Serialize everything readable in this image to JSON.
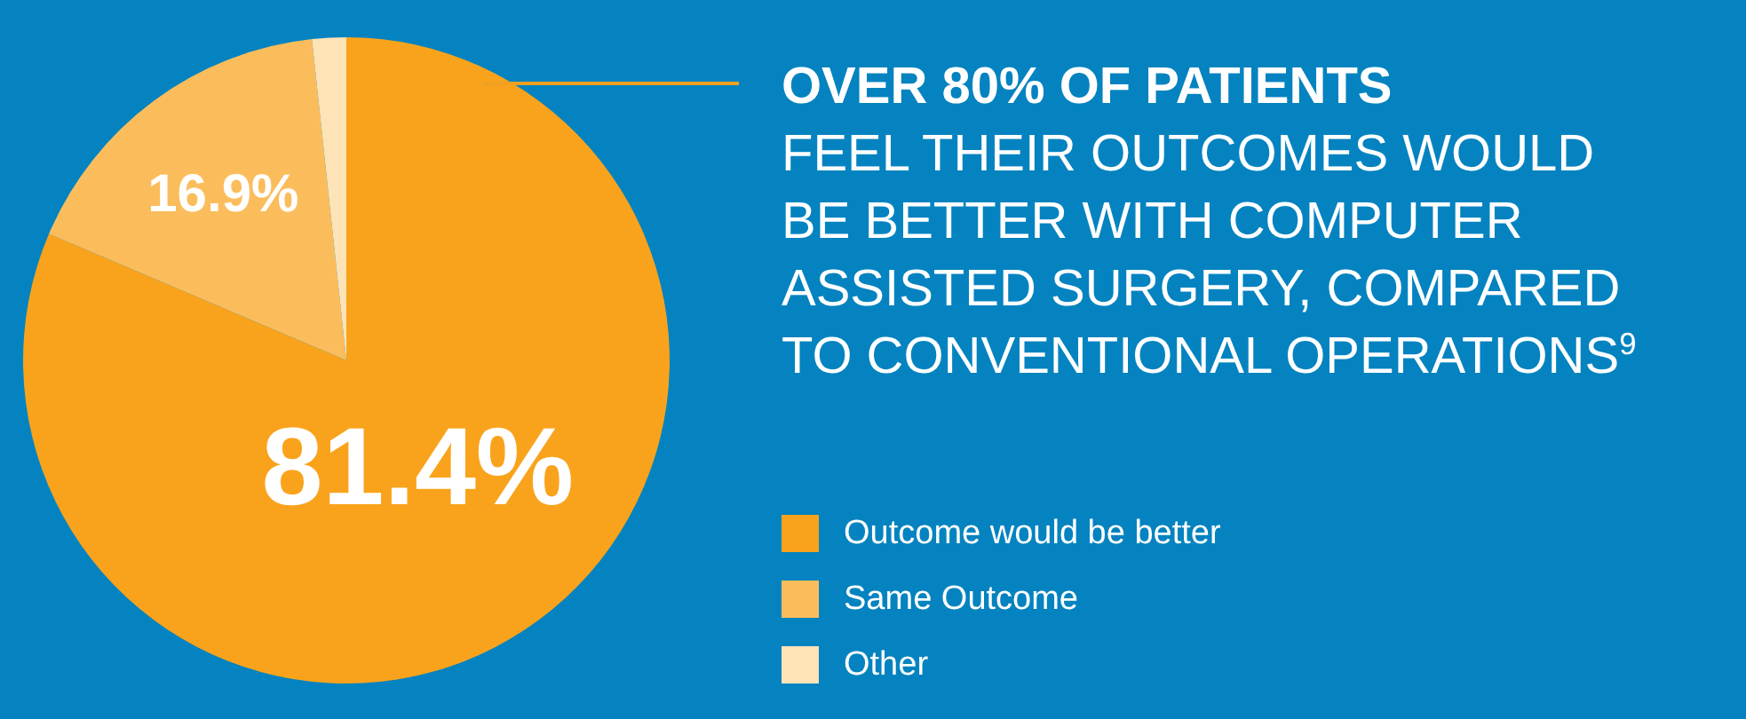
{
  "chart_data": {
    "type": "pie",
    "title": "OVER 80% OF PATIENTS",
    "subtitle": "FEEL THEIR OUTCOMES WOULD BE BETTER WITH COMPUTER ASSISTED SURGERY, COMPARED TO CONVENTIONAL OPERATIONS$^{9}$",
    "categories": [
      "Outcome would be better",
      "Same Outcome",
      "Other"
    ],
    "values": [
      81.4,
      16.9,
      1.7
    ],
    "colors": [
      "#f9a31c",
      "#fbbd5c",
      "#fde3b6"
    ],
    "value_labels": [
      "81.4%",
      "16.9%",
      null
    ],
    "legend": "right"
  }
}
